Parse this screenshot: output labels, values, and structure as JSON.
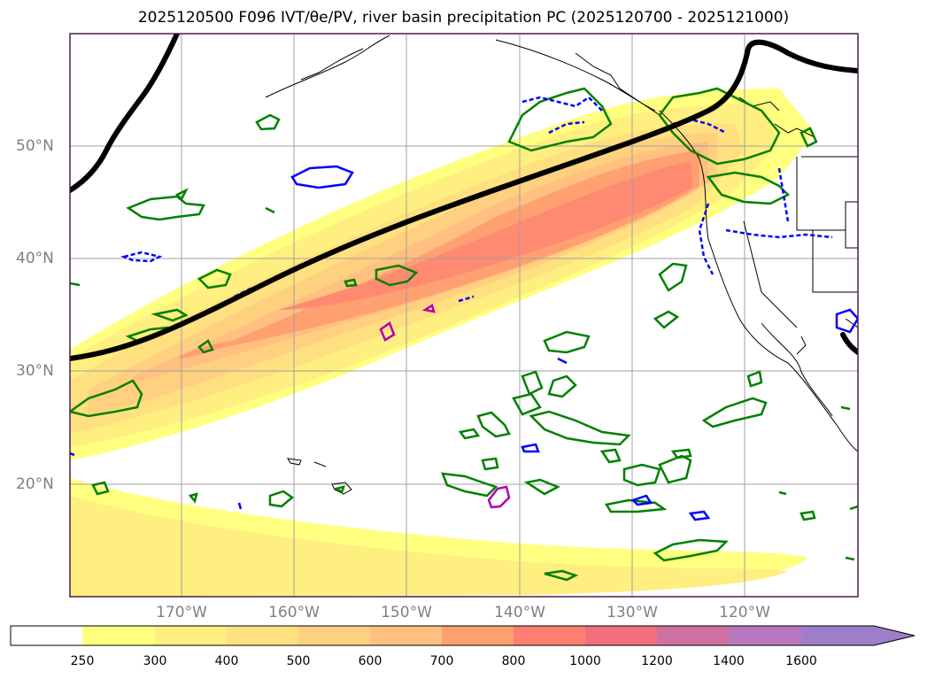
{
  "title": "2025120500 F096 IVT/θe/PV, river basin precipitation PC (2025120700 - 2025121000)",
  "map": {
    "lat_labels": [
      "50°N",
      "40°N",
      "30°N",
      "20°N"
    ],
    "lon_labels": [
      "170°W",
      "160°W",
      "150°W",
      "140°W",
      "130°W",
      "120°W"
    ]
  },
  "colorbar": {
    "levels": [
      "250",
      "300",
      "400",
      "500",
      "600",
      "700",
      "800",
      "1000",
      "1200",
      "1400",
      "1600"
    ],
    "colors": [
      "#ffffff",
      "#ffff80",
      "#ffee80",
      "#ffe080",
      "#ffd080",
      "#ffc080",
      "#ffa070",
      "#ff8070",
      "#f07080",
      "#d070a0",
      "#b878c0",
      "#9e7ec8"
    ]
  },
  "colors": {
    "frame": "#4b1f4b",
    "grid": "#a0a0a0",
    "jet_line": "#000000",
    "green_contours": "#008000",
    "blue_contours": "#0000ff",
    "magenta_contours": "#b000b0"
  }
}
